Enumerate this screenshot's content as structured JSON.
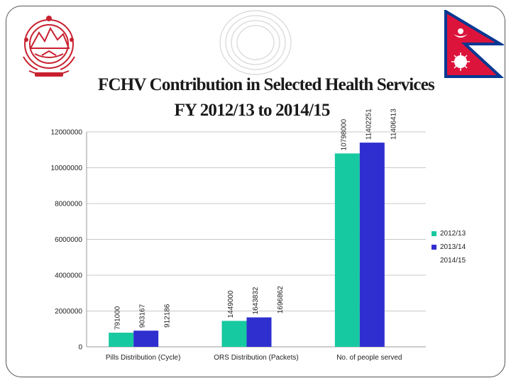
{
  "title": {
    "line1": "FCHV Contribution in Selected Health Services",
    "line2": "FY 2012/13  to 2014/15"
  },
  "colors": {
    "series_2012_13": "#17c9a0",
    "series_2013_14": "#2f2fd0",
    "series_2014_15": "#ffffff",
    "emblem": "#c8202f",
    "flag_red": "#dc143c",
    "flag_border": "#003893"
  },
  "icons": [
    "nepal-emblem-icon",
    "nepal-flag-icon",
    "concentric-rings-icon"
  ],
  "chart_data": {
    "type": "bar",
    "categories": [
      "Pills Distribution (Cycle)",
      "ORS Distribution (Packets)",
      "No. of people served"
    ],
    "series": [
      {
        "name": "2012/13",
        "values": [
          791000,
          1449000,
          10798000
        ],
        "labels": [
          "791000",
          "1449000",
          "10798000"
        ]
      },
      {
        "name": "2013/14",
        "values": [
          903167,
          1643832,
          11402251
        ],
        "labels": [
          "903167",
          "1643832",
          "11402251"
        ]
      },
      {
        "name": "2014/15",
        "values": [
          912186,
          1696862,
          11406413
        ],
        "labels": [
          "912186",
          "1696862",
          "11406413"
        ]
      }
    ],
    "yticks": [
      "0",
      "2000000",
      "4000000",
      "6000000",
      "8000000",
      "10000000",
      "12000000"
    ],
    "ylim": [
      0,
      12000000
    ],
    "xlabel": "",
    "ylabel": "",
    "grid": true,
    "legend_position": "right"
  }
}
